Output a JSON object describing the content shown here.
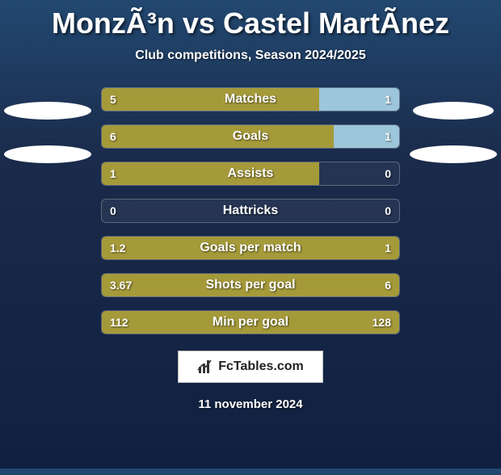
{
  "title": "MonzÃ³n vs Castel MartÃnez",
  "subtitle": "Club competitions, Season 2024/2025",
  "brand": "FcTables.com",
  "date": "11 november 2024",
  "colors": {
    "left": "#a59a3a",
    "right": "#9dc6da",
    "empty_left": "#b0a443",
    "empty_right": "rgba(255,255,255,0.06)"
  },
  "bars": [
    {
      "label": "Matches",
      "left": "5",
      "right": "1",
      "left_pct": 73,
      "right_pct": 27
    },
    {
      "label": "Goals",
      "left": "6",
      "right": "1",
      "left_pct": 78,
      "right_pct": 22
    },
    {
      "label": "Assists",
      "left": "1",
      "right": "0",
      "left_pct": 73,
      "right_pct": 0
    },
    {
      "label": "Hattricks",
      "left": "0",
      "right": "0",
      "left_pct": 0,
      "right_pct": 0
    },
    {
      "label": "Goals per match",
      "left": "1.2",
      "right": "1",
      "left_pct": 100,
      "right_pct": 0
    },
    {
      "label": "Shots per goal",
      "left": "3.67",
      "right": "6",
      "left_pct": 100,
      "right_pct": 0
    },
    {
      "label": "Min per goal",
      "left": "112",
      "right": "128",
      "left_pct": 100,
      "right_pct": 0
    }
  ]
}
